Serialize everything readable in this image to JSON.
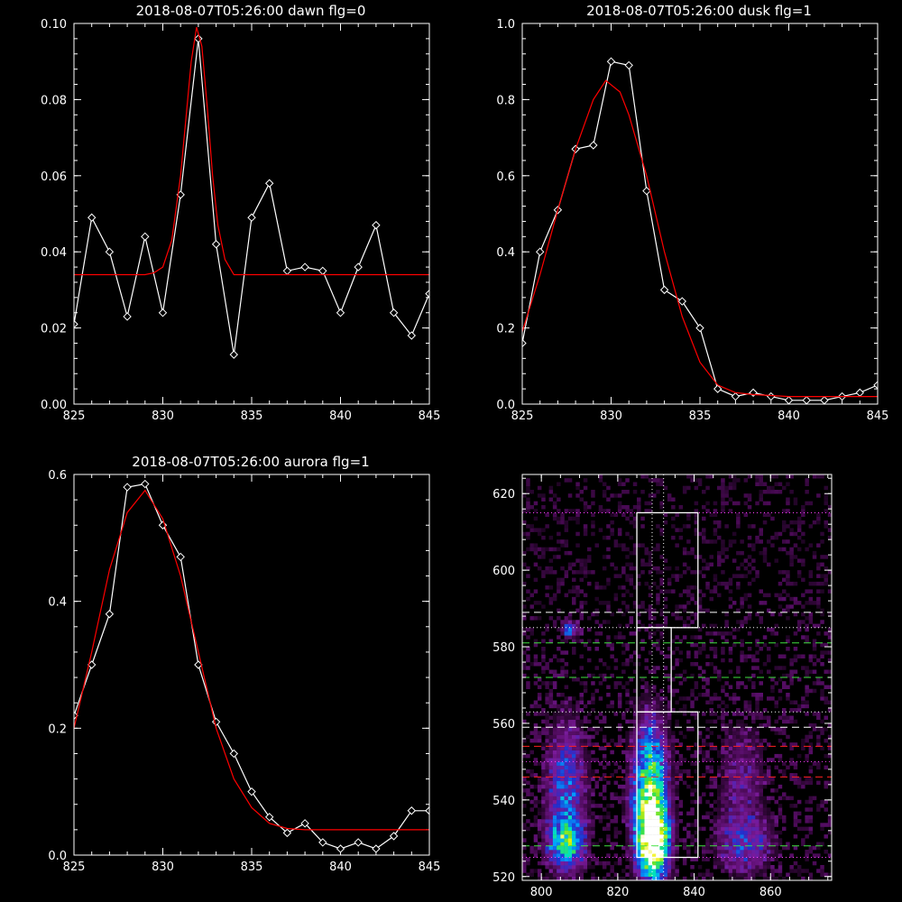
{
  "chart_data": [
    {
      "type": "line",
      "title": "2018-08-07T05:26:00 dawn flg=0",
      "xlim": [
        825,
        845
      ],
      "ylim": [
        0.0,
        0.1
      ],
      "xticks": [
        "825",
        "830",
        "835",
        "840",
        "845"
      ],
      "yticks": [
        "0.00",
        "0.02",
        "0.04",
        "0.06",
        "0.08",
        "0.10"
      ],
      "background": "#000000",
      "series": [
        {
          "color": "#ffffff",
          "marker": "diamond",
          "x": [
            825,
            826,
            827,
            828,
            829,
            830,
            831,
            832,
            833,
            834,
            835,
            836,
            837,
            838,
            839,
            840,
            841,
            842,
            843,
            844,
            845
          ],
          "y": [
            0.021,
            0.049,
            0.04,
            0.023,
            0.044,
            0.024,
            0.055,
            0.096,
            0.042,
            0.013,
            0.049,
            0.058,
            0.035,
            0.036,
            0.035,
            0.024,
            0.036,
            0.047,
            0.024,
            0.018,
            0.029
          ]
        },
        {
          "color": "#ff0000",
          "marker": "none",
          "x": [
            825,
            826,
            827,
            828,
            829,
            829.5,
            830,
            830.5,
            831,
            831.3,
            831.6,
            831.9,
            832.2,
            832.5,
            832.8,
            833.1,
            833.5,
            834,
            835,
            836,
            838,
            840,
            842,
            845
          ],
          "y": [
            0.034,
            0.034,
            0.034,
            0.034,
            0.034,
            0.0345,
            0.036,
            0.043,
            0.06,
            0.075,
            0.09,
            0.099,
            0.094,
            0.078,
            0.06,
            0.047,
            0.038,
            0.034,
            0.034,
            0.034,
            0.034,
            0.034,
            0.034,
            0.034
          ]
        }
      ]
    },
    {
      "type": "line",
      "title": "2018-08-07T05:26:00 dusk flg=1",
      "xlim": [
        825,
        845
      ],
      "ylim": [
        0.0,
        1.0
      ],
      "xticks": [
        "825",
        "830",
        "835",
        "840",
        "845"
      ],
      "yticks": [
        "0.0",
        "0.2",
        "0.4",
        "0.6",
        "0.8",
        "1.0"
      ],
      "background": "#000000",
      "series": [
        {
          "color": "#ffffff",
          "marker": "diamond",
          "x": [
            825,
            826,
            827,
            828,
            829,
            830,
            831,
            832,
            833,
            834,
            835,
            836,
            837,
            838,
            839,
            840,
            841,
            842,
            843,
            844,
            845
          ],
          "y": [
            0.16,
            0.4,
            0.51,
            0.67,
            0.68,
            0.9,
            0.89,
            0.56,
            0.3,
            0.27,
            0.2,
            0.04,
            0.02,
            0.03,
            0.02,
            0.01,
            0.01,
            0.01,
            0.02,
            0.03,
            0.05
          ]
        },
        {
          "color": "#ff0000",
          "marker": "none",
          "x": [
            825,
            826,
            827,
            828,
            829,
            829.7,
            830.5,
            831,
            832,
            833,
            834,
            835,
            836,
            837,
            838,
            840,
            842,
            845
          ],
          "y": [
            0.19,
            0.34,
            0.51,
            0.67,
            0.8,
            0.85,
            0.82,
            0.76,
            0.6,
            0.4,
            0.23,
            0.11,
            0.05,
            0.03,
            0.025,
            0.02,
            0.02,
            0.02
          ]
        }
      ]
    },
    {
      "type": "line",
      "title": "2018-08-07T05:26:00 aurora flg=1",
      "xlim": [
        825,
        845
      ],
      "ylim": [
        0.0,
        0.6
      ],
      "xticks": [
        "825",
        "830",
        "835",
        "840",
        "845"
      ],
      "yticks": [
        "0.0",
        "0.2",
        "0.4",
        "0.6"
      ],
      "background": "#000000",
      "series": [
        {
          "color": "#ffffff",
          "marker": "diamond",
          "x": [
            825,
            826,
            827,
            828,
            829,
            830,
            831,
            832,
            833,
            834,
            835,
            836,
            837,
            838,
            839,
            840,
            841,
            842,
            843,
            844,
            845
          ],
          "y": [
            0.22,
            0.3,
            0.38,
            0.58,
            0.585,
            0.52,
            0.47,
            0.3,
            0.21,
            0.16,
            0.1,
            0.06,
            0.035,
            0.05,
            0.02,
            0.01,
            0.02,
            0.01,
            0.03,
            0.07,
            0.07
          ]
        },
        {
          "color": "#ff0000",
          "marker": "none",
          "x": [
            825,
            826,
            827,
            828,
            829,
            830,
            831,
            832,
            833,
            834,
            835,
            836,
            837,
            838,
            840,
            842,
            845
          ],
          "y": [
            0.2,
            0.32,
            0.45,
            0.54,
            0.575,
            0.53,
            0.44,
            0.32,
            0.2,
            0.12,
            0.075,
            0.05,
            0.042,
            0.04,
            0.04,
            0.04,
            0.04
          ]
        }
      ]
    },
    {
      "type": "heatmap",
      "title": "",
      "xlim": [
        795,
        876
      ],
      "ylim": [
        519,
        625
      ],
      "xticks": [
        "800",
        "820",
        "840",
        "860"
      ],
      "yticks": [
        "520",
        "540",
        "560",
        "580",
        "600",
        "620"
      ],
      "colormap": [
        "#000000",
        "#4a0a55",
        "#7a1a9a",
        "#2030d0",
        "#00a0ff",
        "#00e0c0",
        "#40e040",
        "#f0f000",
        "#ffffff"
      ],
      "hotspots": [
        {
          "x": 829,
          "y": 528,
          "rx": 2.5,
          "ry": 6,
          "intensity": 1.0
        },
        {
          "x": 828,
          "y": 535,
          "rx": 3,
          "ry": 9,
          "intensity": 0.8
        },
        {
          "x": 828,
          "y": 550,
          "rx": 3,
          "ry": 9,
          "intensity": 0.45
        },
        {
          "x": 806,
          "y": 528,
          "rx": 3,
          "ry": 4,
          "intensity": 0.6
        },
        {
          "x": 806,
          "y": 542,
          "rx": 3.5,
          "ry": 12,
          "intensity": 0.4
        },
        {
          "x": 853,
          "y": 528,
          "rx": 5,
          "ry": 5,
          "intensity": 0.3
        },
        {
          "x": 852,
          "y": 545,
          "rx": 4,
          "ry": 10,
          "intensity": 0.2
        },
        {
          "x": 807,
          "y": 584,
          "rx": 1.5,
          "ry": 1.5,
          "intensity": 0.4
        }
      ],
      "boxes": [
        {
          "x0": 825,
          "x1": 841,
          "y0": 525,
          "y1": 563,
          "color": "#ffffff"
        },
        {
          "x0": 825,
          "x1": 834,
          "y0": 563,
          "y1": 585,
          "color": "#ffffff"
        },
        {
          "x0": 825,
          "x1": 841,
          "y0": 585,
          "y1": 615,
          "color": "#ffffff"
        }
      ],
      "hlines": [
        {
          "y": 615,
          "color": "#ff40ff",
          "style": "dotted"
        },
        {
          "y": 589,
          "color": "#ffffff",
          "style": "dashed"
        },
        {
          "y": 585,
          "color": "#ffffff",
          "style": "dotted"
        },
        {
          "y": 581,
          "color": "#40e040",
          "style": "dashed"
        },
        {
          "y": 572,
          "color": "#40e040",
          "style": "dashed"
        },
        {
          "y": 563,
          "color": "#ffffff",
          "style": "dotted"
        },
        {
          "y": 559,
          "color": "#ffffff",
          "style": "dashed"
        },
        {
          "y": 554,
          "color": "#ff2020",
          "style": "dashed"
        },
        {
          "y": 550,
          "color": "#ff40ff",
          "style": "dotted"
        },
        {
          "y": 546,
          "color": "#ff2020",
          "style": "dashed"
        },
        {
          "y": 528,
          "color": "#40e040",
          "style": "dashed"
        },
        {
          "y": 525,
          "color": "#ff40ff",
          "style": "dotted"
        }
      ],
      "vlines": [
        {
          "x": 829,
          "color": "#ffffff",
          "style": "dotted"
        },
        {
          "x": 832,
          "color": "#ffffff",
          "style": "dotted"
        }
      ]
    }
  ]
}
